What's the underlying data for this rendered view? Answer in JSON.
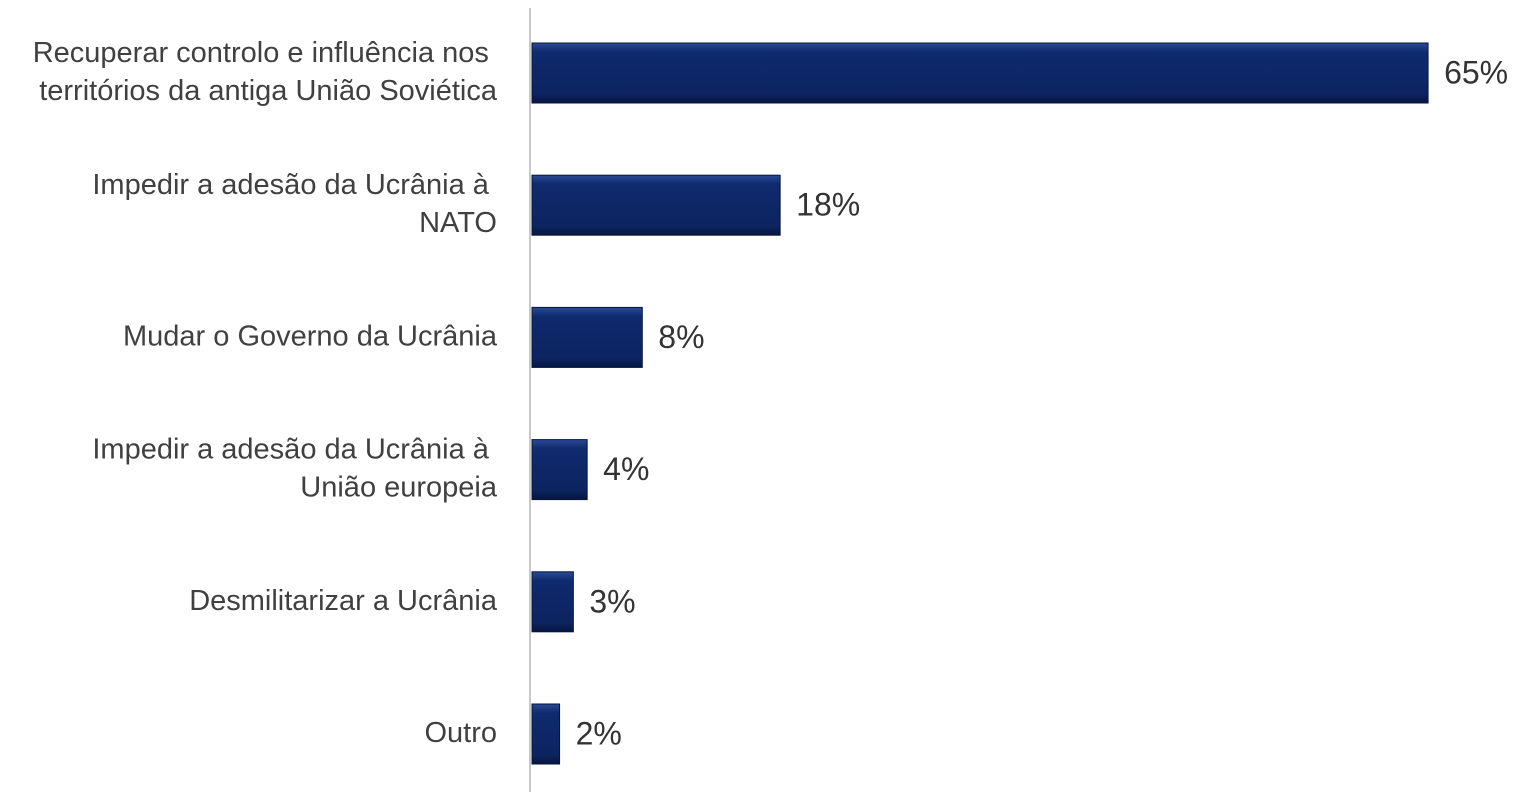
{
  "chart_data": {
    "type": "bar",
    "orientation": "horizontal",
    "categories": [
      "Recuperar controlo e influência nos territórios da antiga União Soviética",
      "Impedir a adesão da Ucrânia à NATO",
      "Mudar o Governo da Ucrânia",
      "Impedir a adesão da Ucrânia à União europeia",
      "Desmilitarizar a Ucrânia",
      "Outro"
    ],
    "values": [
      65,
      18,
      8,
      4,
      3,
      2
    ],
    "value_labels": [
      "65%",
      "18%",
      "8%",
      "4%",
      "3%",
      "2%"
    ],
    "color": "#0f2a6e",
    "xlim": [
      0,
      70
    ]
  }
}
